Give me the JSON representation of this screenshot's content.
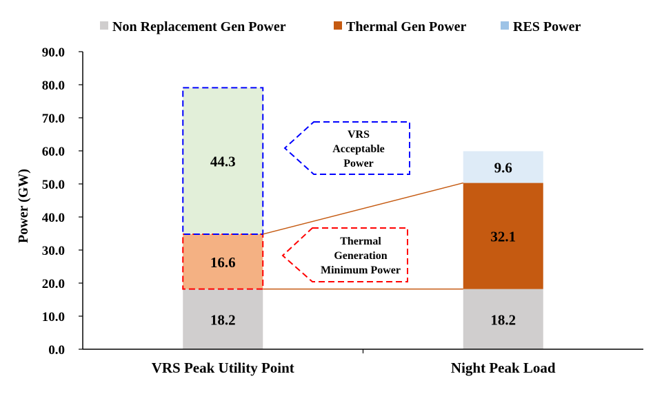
{
  "chart_data": {
    "type": "bar",
    "stacked": true,
    "categories": [
      "VRS Peak Utility Point",
      "Night Peak Load"
    ],
    "series": [
      {
        "name": "Non Replacement Gen Power",
        "legend_color": "#d0cece"
      },
      {
        "name": "Thermal Gen Power",
        "legend_color": "#c55a11"
      },
      {
        "name": "RES Power",
        "legend_color": "#9dc3e6"
      }
    ],
    "stacks": [
      [
        {
          "value": 18.2,
          "label": "18.2",
          "color": "#d0cece"
        },
        {
          "value": 16.6,
          "label": "16.6",
          "color": "#f4b183"
        },
        {
          "value": 44.3,
          "label": "44.3",
          "color": "#e2efd9"
        }
      ],
      [
        {
          "value": 18.2,
          "label": "18.2",
          "color": "#d0cece"
        },
        {
          "value": 32.1,
          "label": "32.1",
          "color": "#c55a11"
        },
        {
          "value": 9.6,
          "label": "9.6",
          "color": "#deebf7"
        }
      ]
    ],
    "ylabel": "Power (GW)",
    "xlabel": "",
    "ylim": [
      0,
      90
    ],
    "yticks": [
      "0.0",
      "10.0",
      "20.0",
      "30.0",
      "40.0",
      "50.0",
      "60.0",
      "70.0",
      "80.0",
      "90.0"
    ],
    "legend_position": "top",
    "grid": false,
    "annotations": [
      {
        "text_lines": [
          "VRS",
          "Acceptable",
          "Power"
        ],
        "color": "#0000ff"
      },
      {
        "text_lines": [
          "Thermal",
          "Generation",
          "Minimum Power"
        ],
        "color": "#ff0000"
      }
    ],
    "connector_color": "#c55a11"
  }
}
